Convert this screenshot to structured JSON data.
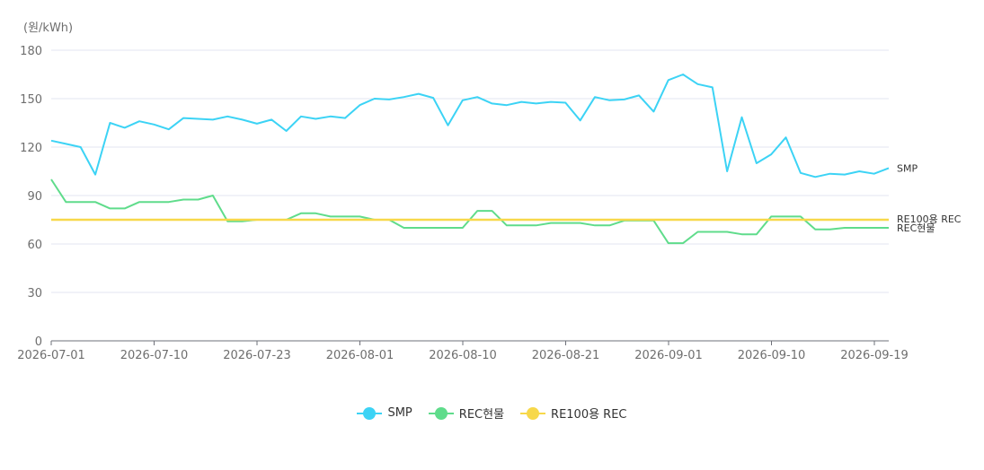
{
  "chart_data": {
    "type": "line",
    "ylabel": "(원/kWh)",
    "ylim": [
      0,
      180
    ],
    "yticks": [
      0,
      30,
      60,
      90,
      120,
      150,
      180
    ],
    "grid": true,
    "legend_position": "bottom",
    "x_tick_labels": [
      "2026-07-01",
      "2026-07-10",
      "2026-07-23",
      "2026-08-01",
      "2026-08-10",
      "2026-08-21",
      "2026-09-01",
      "2026-09-10",
      "2026-09-19"
    ],
    "series": [
      {
        "name": "SMP",
        "end_label": "SMP",
        "color": "#3cd3f5",
        "values": [
          124,
          122,
          120,
          103,
          135,
          132,
          136,
          134,
          131,
          138,
          137.5,
          137,
          139,
          137,
          134.5,
          137,
          130,
          139,
          137.5,
          139,
          138,
          146,
          150,
          149.5,
          151,
          153,
          150.5,
          133.5,
          149,
          151,
          147,
          146,
          148,
          147,
          148,
          147.5,
          136.5,
          151,
          149,
          149.5,
          152,
          142,
          161.5,
          165,
          159,
          157,
          105,
          138.5,
          110,
          115.5,
          126,
          104,
          101.5,
          103.5,
          103,
          105,
          103.5,
          107
        ]
      },
      {
        "name": "REC현물",
        "end_label": "REC현물",
        "color": "#5fdc8b",
        "values": [
          100,
          86,
          86,
          86,
          82,
          82,
          86,
          86,
          86,
          87.5,
          87.5,
          90,
          74,
          74,
          75,
          75,
          75,
          79,
          79,
          77,
          77,
          77,
          75,
          75,
          70,
          70,
          70,
          70,
          70,
          80.5,
          80.5,
          71.5,
          71.5,
          71.5,
          73,
          73,
          73,
          71.5,
          71.5,
          74.5,
          74.5,
          74.5,
          60.5,
          60.5,
          67.5,
          67.5,
          67.5,
          66,
          66,
          77,
          77,
          77,
          69,
          69,
          70,
          70,
          70,
          70
        ]
      },
      {
        "name": "RE100용 REC",
        "end_label": "RE100용 REC",
        "color": "#f7d84a",
        "values": [
          75,
          75,
          75,
          75,
          75,
          75,
          75,
          75,
          75,
          75,
          75,
          75,
          75,
          75,
          75,
          75,
          75,
          75,
          75,
          75,
          75,
          75,
          75,
          75,
          75,
          75,
          75,
          75,
          75,
          75,
          75,
          75,
          75,
          75,
          75,
          75,
          75,
          75,
          75,
          75,
          75,
          75,
          75,
          75,
          75,
          75,
          75,
          75,
          75,
          75,
          75,
          75,
          75,
          75,
          75,
          75,
          75,
          75
        ]
      }
    ]
  }
}
